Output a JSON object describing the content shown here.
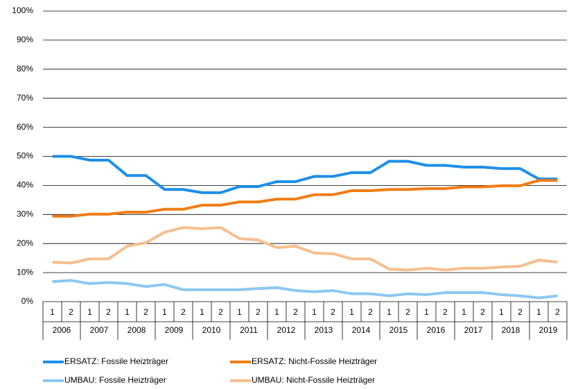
{
  "chart_data": {
    "type": "line",
    "categories": [
      "1",
      "2",
      "1",
      "2",
      "1",
      "2",
      "1",
      "2",
      "1",
      "2",
      "1",
      "2",
      "1",
      "2",
      "1",
      "2",
      "1",
      "2",
      "1",
      "2",
      "1",
      "2",
      "1",
      "2",
      "1",
      "2",
      "1",
      "2"
    ],
    "category_groups": [
      "2006",
      "2007",
      "2008",
      "2009",
      "2010",
      "2011",
      "2012",
      "2013",
      "2014",
      "2015",
      "2016",
      "2017",
      "2018",
      "2019"
    ],
    "series": [
      {
        "name": "ERSATZ: Fossile Heizträger",
        "color": "#1e8fe8",
        "values": [
          50,
          50,
          48.7,
          48.7,
          43.4,
          43.4,
          38.6,
          38.6,
          37.5,
          37.5,
          39.6,
          39.6,
          41.3,
          41.3,
          43.1,
          43.1,
          44.4,
          44.4,
          48.3,
          48.3,
          46.9,
          46.9,
          46.3,
          46.3,
          45.8,
          45.8,
          42.2,
          42.2
        ]
      },
      {
        "name": "ERSATZ: Nicht-Fossile Heizträger",
        "color": "#f07d14",
        "values": [
          29.4,
          29.4,
          30.1,
          30.1,
          30.8,
          30.8,
          31.8,
          31.8,
          33.2,
          33.2,
          34.3,
          34.3,
          35.3,
          35.3,
          36.8,
          36.8,
          38.2,
          38.2,
          38.6,
          38.6,
          38.9,
          38.9,
          39.5,
          39.5,
          39.9,
          39.9,
          41.7,
          41.7
        ]
      },
      {
        "name": "UMBAU: Fossile Heizträger",
        "color": "#8cc8f2",
        "values": [
          6.9,
          7.3,
          6.2,
          6.6,
          6.2,
          5.2,
          5.9,
          4.1,
          4.1,
          4.1,
          4.1,
          4.5,
          4.8,
          3.8,
          3.4,
          3.8,
          2.7,
          2.7,
          2.0,
          2.7,
          2.4,
          3.1,
          3.1,
          3.1,
          2.4,
          2.0,
          1.3,
          2.0
        ]
      },
      {
        "name": "UMBAU: Nicht-Fossile Heizträger",
        "color": "#f6be8e",
        "values": [
          13.6,
          13.3,
          14.7,
          14.7,
          19.1,
          20.3,
          23.9,
          25.5,
          25.1,
          25.5,
          21.7,
          21.2,
          18.6,
          19.1,
          16.7,
          16.5,
          14.7,
          14.7,
          11.2,
          10.9,
          11.5,
          10.9,
          11.5,
          11.5,
          11.9,
          12.2,
          14.3,
          13.6
        ]
      }
    ],
    "ylim": [
      0,
      100
    ],
    "yticks": [
      {
        "value": 0,
        "label": "0%"
      },
      {
        "value": 10,
        "label": "10%"
      },
      {
        "value": 20,
        "label": "20%"
      },
      {
        "value": 30,
        "label": "30%"
      },
      {
        "value": 40,
        "label": "40%"
      },
      {
        "value": 50,
        "label": "50%"
      },
      {
        "value": 60,
        "label": "60%"
      },
      {
        "value": 70,
        "label": "70%"
      },
      {
        "value": 80,
        "label": "80%"
      },
      {
        "value": 90,
        "label": "90%"
      },
      {
        "value": 100,
        "label": "100%"
      }
    ],
    "grid": true
  }
}
